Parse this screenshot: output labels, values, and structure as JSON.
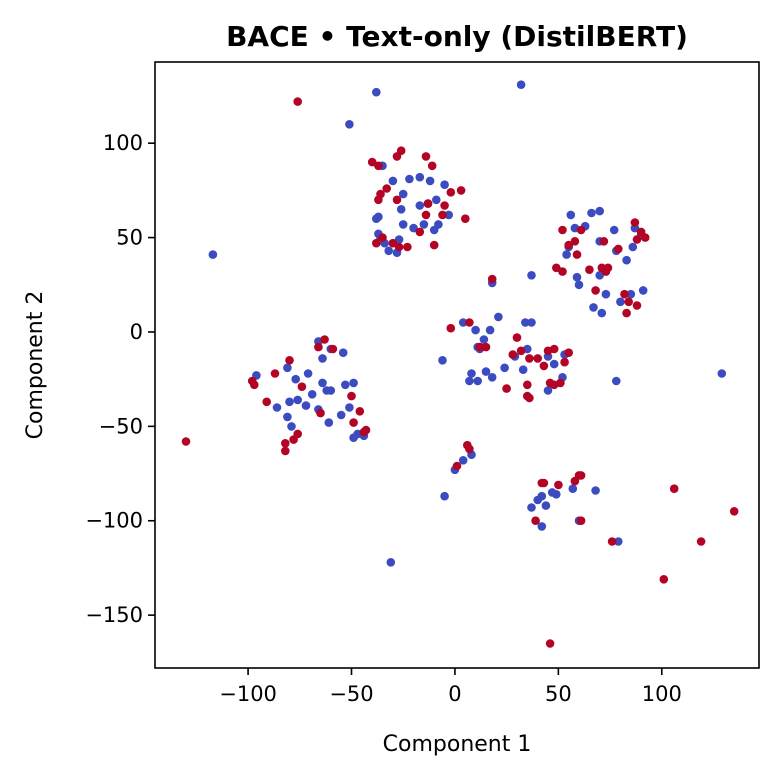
{
  "chart_data": {
    "type": "scatter",
    "title": "BACE • Text-only (DistilBERT)",
    "xlabel": "Component 1",
    "ylabel": "Component 2",
    "xlim": [
      -145,
      147
    ],
    "ylim": [
      -178,
      143
    ],
    "xticks": [
      -100,
      -50,
      0,
      50,
      100
    ],
    "yticks": [
      -150,
      -100,
      -50,
      0,
      50,
      100
    ],
    "grid": false,
    "legend": "none",
    "colors": {
      "class_a": "#3b4cc0",
      "class_b": "#b40426"
    },
    "series": [
      {
        "color": "#3b4cc0",
        "points": [
          [
            -38,
            127
          ],
          [
            -51,
            110
          ],
          [
            32,
            131
          ],
          [
            -117,
            41
          ],
          [
            129,
            -22
          ],
          [
            -31,
            -122
          ],
          [
            -5,
            -87
          ],
          [
            -35,
            88
          ],
          [
            -30,
            80
          ],
          [
            -22,
            81
          ],
          [
            -17,
            82
          ],
          [
            -12,
            80
          ],
          [
            -5,
            78
          ],
          [
            -25,
            73
          ],
          [
            -13,
            68
          ],
          [
            -17,
            67
          ],
          [
            -9,
            70
          ],
          [
            -38,
            60
          ],
          [
            -37,
            61
          ],
          [
            -8,
            57
          ],
          [
            -3,
            62
          ],
          [
            -36,
            50
          ],
          [
            -37,
            52
          ],
          [
            -34,
            47
          ],
          [
            -28,
            42
          ],
          [
            -32,
            43
          ],
          [
            -25,
            57
          ],
          [
            -27,
            49
          ],
          [
            -20,
            55
          ],
          [
            -15,
            57
          ],
          [
            -10,
            54
          ],
          [
            -26,
            65
          ],
          [
            56,
            62
          ],
          [
            66,
            63
          ],
          [
            70,
            64
          ],
          [
            77,
            54
          ],
          [
            87,
            55
          ],
          [
            90,
            52
          ],
          [
            63,
            56
          ],
          [
            70,
            48
          ],
          [
            78,
            43
          ],
          [
            83,
            38
          ],
          [
            55,
            45
          ],
          [
            54,
            41
          ],
          [
            70,
            30
          ],
          [
            59,
            29
          ],
          [
            60,
            25
          ],
          [
            73,
            20
          ],
          [
            80,
            16
          ],
          [
            85,
            20
          ],
          [
            67,
            13
          ],
          [
            91,
            22
          ],
          [
            71,
            10
          ],
          [
            86,
            45
          ],
          [
            78,
            -26
          ],
          [
            37,
            30
          ],
          [
            58,
            55
          ],
          [
            14,
            -4
          ],
          [
            21,
            8
          ],
          [
            18,
            26
          ],
          [
            29,
            -13
          ],
          [
            33,
            -20
          ],
          [
            35,
            -9
          ],
          [
            48,
            -17
          ],
          [
            52,
            -24
          ],
          [
            53,
            -12
          ],
          [
            45,
            -31
          ],
          [
            4,
            5
          ],
          [
            10,
            1
          ],
          [
            17,
            1
          ],
          [
            34,
            5
          ],
          [
            37,
            5
          ],
          [
            11,
            -8
          ],
          [
            12,
            -9
          ],
          [
            -6,
            -15
          ],
          [
            15,
            -21
          ],
          [
            18,
            -24
          ],
          [
            8,
            -22
          ],
          [
            7,
            -26
          ],
          [
            11,
            -26
          ],
          [
            24,
            -19
          ],
          [
            45,
            -13
          ],
          [
            -66,
            -5
          ],
          [
            -64,
            -14
          ],
          [
            -60,
            -9
          ],
          [
            -54,
            -11
          ],
          [
            -81,
            -19
          ],
          [
            -77,
            -25
          ],
          [
            -71,
            -22
          ],
          [
            -64,
            -27
          ],
          [
            -60,
            -31
          ],
          [
            -53,
            -28
          ],
          [
            -49,
            -27
          ],
          [
            -96,
            -23
          ],
          [
            -80,
            -37
          ],
          [
            -76,
            -36
          ],
          [
            -81,
            -45
          ],
          [
            -79,
            -50
          ],
          [
            -72,
            -39
          ],
          [
            -69,
            -33
          ],
          [
            -66,
            -41
          ],
          [
            -61,
            -48
          ],
          [
            -55,
            -44
          ],
          [
            -51,
            -40
          ],
          [
            -49,
            -56
          ],
          [
            -47,
            -54
          ],
          [
            -44,
            -55
          ],
          [
            -86,
            -40
          ],
          [
            -62,
            -31
          ],
          [
            4,
            -68
          ],
          [
            8,
            -65
          ],
          [
            0,
            -73
          ],
          [
            40,
            -89
          ],
          [
            42,
            -87
          ],
          [
            44,
            -92
          ],
          [
            49,
            -86
          ],
          [
            47,
            -85
          ],
          [
            37,
            -93
          ],
          [
            42,
            -103
          ],
          [
            57,
            -83
          ],
          [
            68,
            -84
          ],
          [
            60,
            -100
          ],
          [
            79,
            -111
          ]
        ]
      },
      {
        "color": "#b40426",
        "points": [
          [
            -76,
            122
          ],
          [
            -130,
            -58
          ],
          [
            -40,
            90
          ],
          [
            -37,
            88
          ],
          [
            -28,
            93
          ],
          [
            -26,
            96
          ],
          [
            -14,
            93
          ],
          [
            -11,
            88
          ],
          [
            -33,
            76
          ],
          [
            -36,
            73
          ],
          [
            -37,
            70
          ],
          [
            -28,
            70
          ],
          [
            -2,
            74
          ],
          [
            3,
            75
          ],
          [
            -13,
            68
          ],
          [
            -5,
            67
          ],
          [
            -6,
            62
          ],
          [
            -14,
            62
          ],
          [
            -35,
            50
          ],
          [
            -38,
            47
          ],
          [
            -27,
            45
          ],
          [
            -30,
            47
          ],
          [
            -17,
            53
          ],
          [
            -10,
            46
          ],
          [
            5,
            60
          ],
          [
            -23,
            45
          ],
          [
            52,
            54
          ],
          [
            58,
            48
          ],
          [
            87,
            58
          ],
          [
            90,
            53
          ],
          [
            88,
            49
          ],
          [
            92,
            50
          ],
          [
            55,
            46
          ],
          [
            59,
            41
          ],
          [
            65,
            33
          ],
          [
            71,
            34
          ],
          [
            73,
            32
          ],
          [
            52,
            32
          ],
          [
            68,
            22
          ],
          [
            82,
            20
          ],
          [
            84,
            16
          ],
          [
            83,
            10
          ],
          [
            88,
            14
          ],
          [
            79,
            44
          ],
          [
            72,
            48
          ],
          [
            74,
            34
          ],
          [
            49,
            34
          ],
          [
            61,
            54
          ],
          [
            18,
            28
          ],
          [
            -2,
            2
          ],
          [
            25,
            -30
          ],
          [
            28,
            -12
          ],
          [
            32,
            -10
          ],
          [
            36,
            -14
          ],
          [
            40,
            -14
          ],
          [
            43,
            -18
          ],
          [
            45,
            -10
          ],
          [
            48,
            -9
          ],
          [
            55,
            -11
          ],
          [
            53,
            -16
          ],
          [
            46,
            -27
          ],
          [
            48,
            -28
          ],
          [
            51,
            -27
          ],
          [
            7,
            5
          ],
          [
            30,
            -3
          ],
          [
            35,
            -28
          ],
          [
            35,
            -34
          ],
          [
            36,
            -35
          ],
          [
            12,
            -8
          ],
          [
            15,
            -8
          ],
          [
            -63,
            -4
          ],
          [
            -59,
            -9
          ],
          [
            -66,
            -8
          ],
          [
            -80,
            -15
          ],
          [
            -87,
            -22
          ],
          [
            -74,
            -29
          ],
          [
            -98,
            -26
          ],
          [
            -97,
            -28
          ],
          [
            -91,
            -37
          ],
          [
            -76,
            -54
          ],
          [
            -78,
            -57
          ],
          [
            -82,
            -59
          ],
          [
            -82,
            -63
          ],
          [
            -65,
            -43
          ],
          [
            -50,
            -34
          ],
          [
            -46,
            -42
          ],
          [
            -49,
            -48
          ],
          [
            -43,
            -52
          ],
          [
            -44,
            -53
          ],
          [
            6,
            -60
          ],
          [
            7,
            -62
          ],
          [
            1,
            -71
          ],
          [
            42,
            -80
          ],
          [
            43,
            -80
          ],
          [
            50,
            -81
          ],
          [
            58,
            -79
          ],
          [
            60,
            -76
          ],
          [
            61,
            -76
          ],
          [
            39,
            -100
          ],
          [
            61,
            -100
          ],
          [
            76,
            -111
          ],
          [
            101,
            -131
          ],
          [
            106,
            -83
          ],
          [
            119,
            -111
          ],
          [
            135,
            -95
          ],
          [
            46,
            -165
          ]
        ]
      }
    ]
  }
}
